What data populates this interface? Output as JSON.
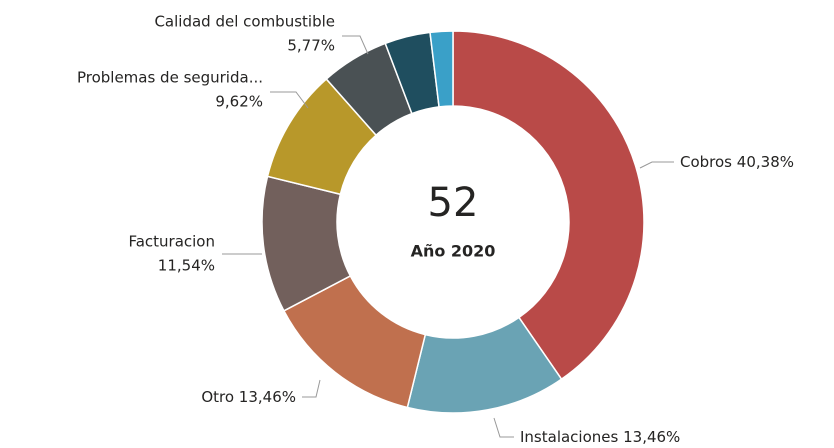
{
  "chart_data": {
    "type": "donut",
    "center_value": 52,
    "center_label": "Año 2020",
    "categories": [
      "Cobros",
      "Instalaciones",
      "Otro",
      "Facturacion",
      "Problemas de segurida...",
      "Calidad del combustible",
      null,
      null
    ],
    "values": [
      40.38,
      13.46,
      13.46,
      11.54,
      9.62,
      5.77,
      3.85,
      1.92
    ],
    "value_labels": [
      "40,38%",
      "13,46%",
      "13,46%",
      "11,54%",
      "9,62%",
      "5,77%",
      null,
      null
    ],
    "colors": [
      "#b94a48",
      "#6aa3b4",
      "#c0704e",
      "#72605c",
      "#b8982a",
      "#4a5154",
      "#1f4e5f",
      "#3aa0c8"
    ]
  }
}
